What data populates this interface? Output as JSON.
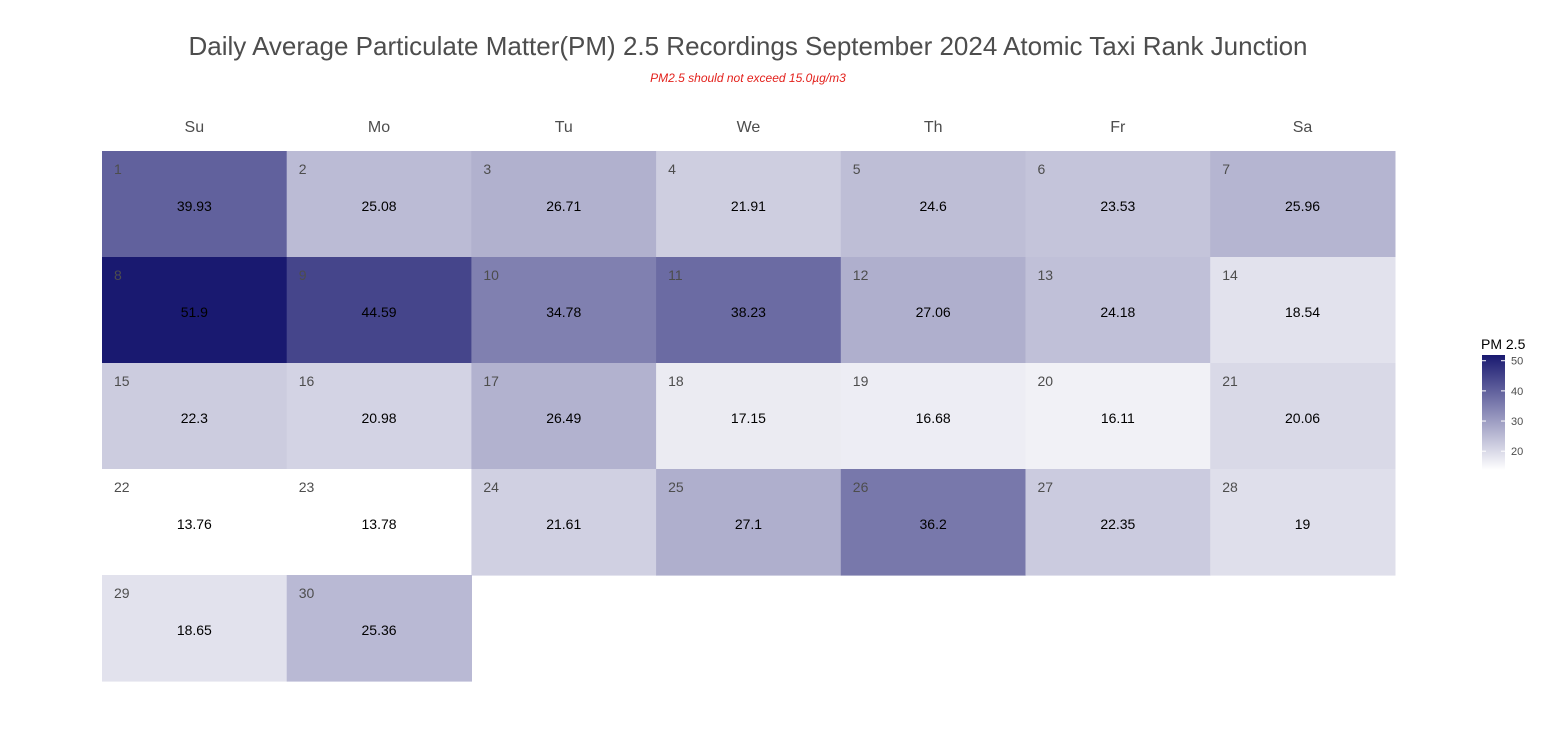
{
  "chart_data": {
    "type": "heatmap",
    "title": "Daily Average Particulate Matter(PM) 2.5 Recordings September 2024 Atomic Taxi Rank Junction",
    "subtitle": "PM2.5 should not exceed 15.0µg/m3",
    "weekdays": [
      "Su",
      "Mo",
      "Tu",
      "We",
      "Th",
      "Fr",
      "Sa"
    ],
    "first_weekday_index": 0,
    "days": [
      1,
      2,
      3,
      4,
      5,
      6,
      7,
      8,
      9,
      10,
      11,
      12,
      13,
      14,
      15,
      16,
      17,
      18,
      19,
      20,
      21,
      22,
      23,
      24,
      25,
      26,
      27,
      28,
      29,
      30
    ],
    "values": [
      39.93,
      25.08,
      26.71,
      21.91,
      24.6,
      23.53,
      25.96,
      51.9,
      44.59,
      34.78,
      38.23,
      27.06,
      24.18,
      18.54,
      22.3,
      20.98,
      26.49,
      17.15,
      16.68,
      16.11,
      20.06,
      13.76,
      13.78,
      21.61,
      27.1,
      36.2,
      22.35,
      19,
      18.65,
      25.36
    ],
    "legend": {
      "title": "PM 2.5",
      "ticks": [
        20,
        30,
        40,
        50
      ],
      "tick_labels": [
        "20",
        "30",
        "40",
        "50"
      ],
      "min": 13.76,
      "max": 51.9,
      "low_color": "#ffffff",
      "high_color": "#191970",
      "placement": "right"
    }
  }
}
